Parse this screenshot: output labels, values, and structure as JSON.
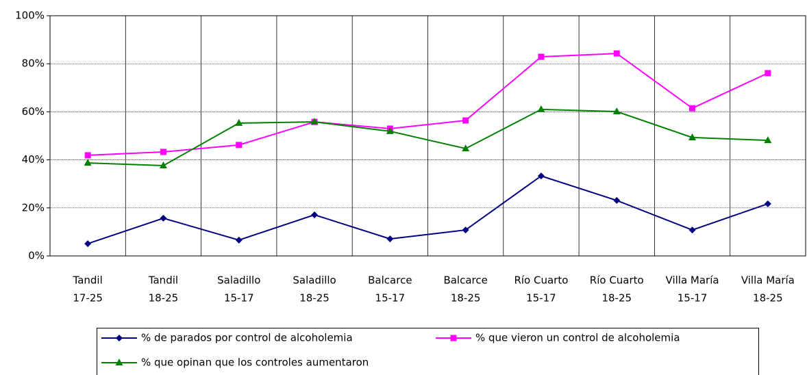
{
  "chart_data": {
    "type": "line",
    "categories": [
      [
        "Tandil",
        "17-25"
      ],
      [
        "Tandil",
        "18-25"
      ],
      [
        "Saladillo",
        "15-17"
      ],
      [
        "Saladillo",
        "18-25"
      ],
      [
        "Balcarce",
        "15-17"
      ],
      [
        "Balcarce",
        "18-25"
      ],
      [
        "Río Cuarto",
        "15-17"
      ],
      [
        "Río Cuarto",
        "18-25"
      ],
      [
        "Villa María",
        "15-17"
      ],
      [
        "Villa María",
        "18-25"
      ]
    ],
    "series": [
      {
        "name": "% de parados por control de alcoholemia",
        "color": "#000080",
        "marker": "diamond",
        "values": [
          5.1,
          15.7,
          6.6,
          17.1,
          7.1,
          10.8,
          33.3,
          23.1,
          10.8,
          21.7
        ]
      },
      {
        "name": "% que vieron un control de alcoholemia",
        "color": "#ff00ff",
        "marker": "square",
        "values": [
          41.9,
          43.3,
          46.2,
          55.8,
          53,
          56.4,
          82.9,
          84.3,
          61.5,
          76.1
        ]
      },
      {
        "name": "% que opinan que los controles aumentaron",
        "color": "#008000",
        "marker": "triangle",
        "values": [
          38.7,
          37.6,
          55.3,
          55.8,
          51.9,
          44.7,
          61,
          60.1,
          49.3,
          48.1
        ]
      }
    ],
    "ylim": [
      0,
      100
    ],
    "yticks": [
      {
        "value": 0,
        "label": "0%"
      },
      {
        "value": 20,
        "label": "20%"
      },
      {
        "value": 40,
        "label": "40%"
      },
      {
        "value": 60,
        "label": "60%"
      },
      {
        "value": 80,
        "label": "80%"
      },
      {
        "value": 100,
        "label": "100%"
      }
    ],
    "grid": true,
    "legend": "bottom"
  }
}
